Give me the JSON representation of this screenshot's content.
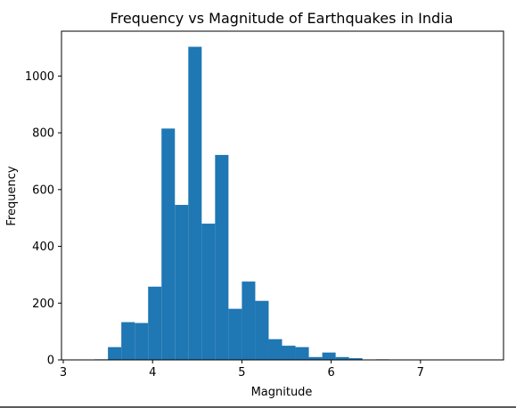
{
  "chart_data": {
    "type": "bar",
    "title": "Frequency vs Magnitude of Earthquakes in India",
    "xlabel": "Magnitude",
    "ylabel": "Frequency",
    "xlim": [
      2.98,
      7.93
    ],
    "ylim": [
      0,
      1158
    ],
    "xticks": [
      3,
      4,
      5,
      6,
      7
    ],
    "yticks": [
      0,
      200,
      400,
      600,
      800,
      1000
    ],
    "bar_color": "#1f77b4",
    "bins": [
      {
        "start": 3.35,
        "end": 3.5,
        "value": 2
      },
      {
        "start": 3.5,
        "end": 3.65,
        "value": 45
      },
      {
        "start": 3.65,
        "end": 3.8,
        "value": 133
      },
      {
        "start": 3.8,
        "end": 3.95,
        "value": 130
      },
      {
        "start": 3.95,
        "end": 4.1,
        "value": 258
      },
      {
        "start": 4.1,
        "end": 4.25,
        "value": 815
      },
      {
        "start": 4.25,
        "end": 4.4,
        "value": 546
      },
      {
        "start": 4.4,
        "end": 4.55,
        "value": 1103
      },
      {
        "start": 4.55,
        "end": 4.7,
        "value": 480
      },
      {
        "start": 4.7,
        "end": 4.85,
        "value": 722
      },
      {
        "start": 4.85,
        "end": 5.0,
        "value": 180
      },
      {
        "start": 5.0,
        "end": 5.15,
        "value": 276
      },
      {
        "start": 5.15,
        "end": 5.3,
        "value": 208
      },
      {
        "start": 5.3,
        "end": 5.45,
        "value": 73
      },
      {
        "start": 5.45,
        "end": 5.6,
        "value": 50
      },
      {
        "start": 5.6,
        "end": 5.75,
        "value": 45
      },
      {
        "start": 5.75,
        "end": 5.9,
        "value": 10
      },
      {
        "start": 5.9,
        "end": 6.05,
        "value": 26
      },
      {
        "start": 6.05,
        "end": 6.2,
        "value": 10
      },
      {
        "start": 6.2,
        "end": 6.35,
        "value": 6
      },
      {
        "start": 6.35,
        "end": 6.5,
        "value": 1
      },
      {
        "start": 6.5,
        "end": 6.65,
        "value": 2
      },
      {
        "start": 6.65,
        "end": 6.8,
        "value": 1
      },
      {
        "start": 6.8,
        "end": 6.95,
        "value": 0
      },
      {
        "start": 6.95,
        "end": 7.1,
        "value": 0
      },
      {
        "start": 7.1,
        "end": 7.25,
        "value": 0
      },
      {
        "start": 7.25,
        "end": 7.4,
        "value": 0
      },
      {
        "start": 7.4,
        "end": 7.55,
        "value": 0
      },
      {
        "start": 7.55,
        "end": 7.7,
        "value": 1
      }
    ]
  }
}
